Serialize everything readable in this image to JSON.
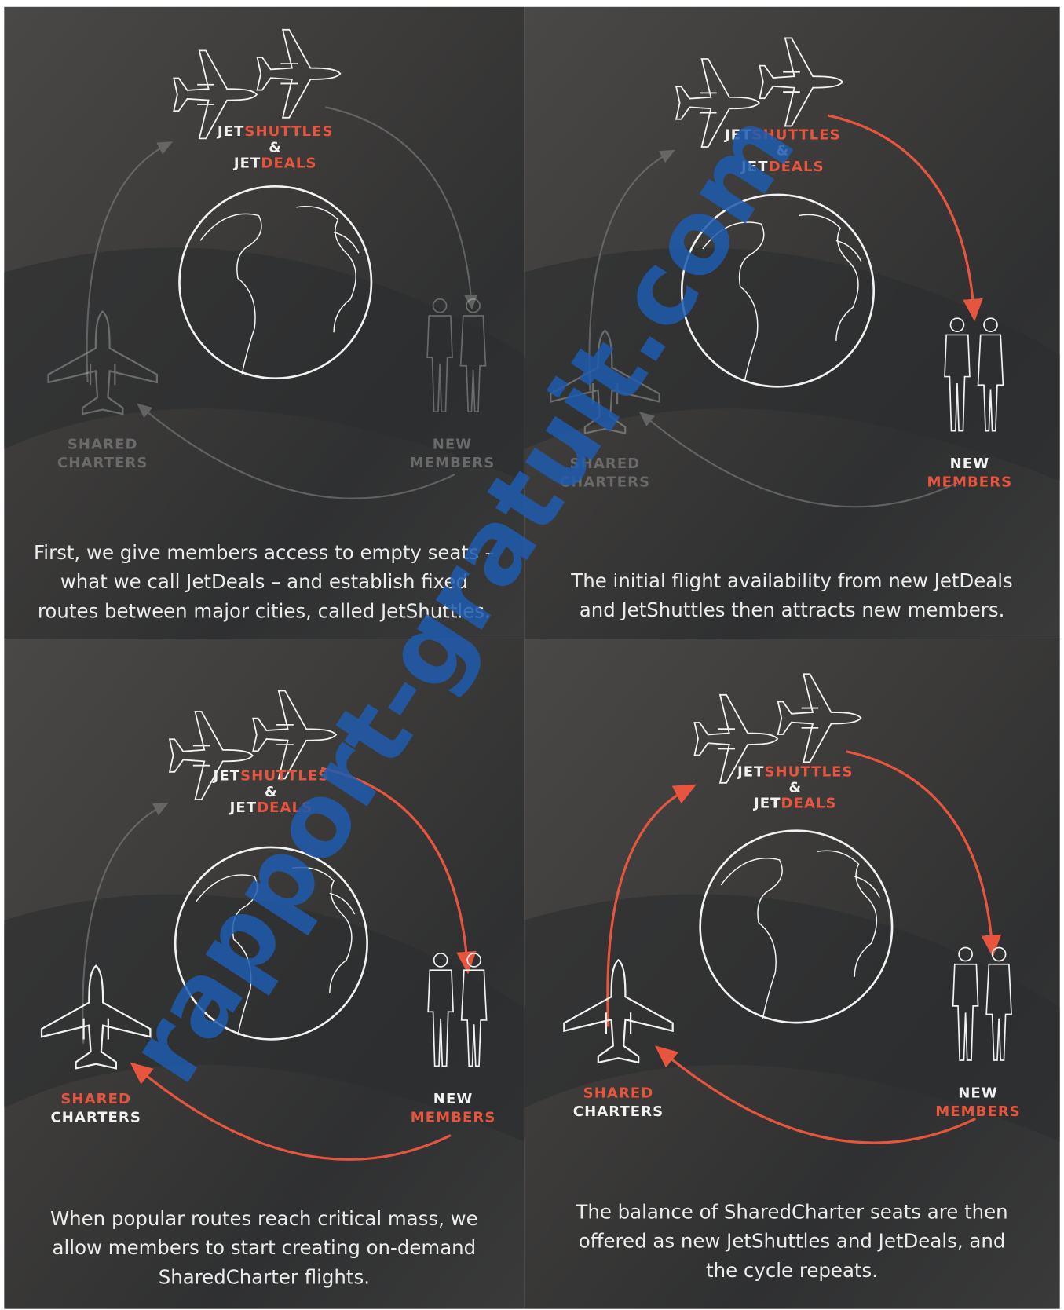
{
  "panels": [
    {
      "jet_shuttles": [
        "JET",
        "SHUTTLES"
      ],
      "ampersand": "&",
      "jet_deals": [
        "JET",
        "DEALS"
      ],
      "shared_charters": [
        "SHARED",
        "CHARTERS"
      ],
      "new_members": [
        "NEW",
        "MEMBERS"
      ],
      "caption": [
        "First, we give members access to empty seats –",
        "what we call JetDeals – and establish fixed",
        "routes between major cities, called JetShuttles."
      ]
    },
    {
      "jet_shuttles": [
        "JET",
        "SHUTTLES"
      ],
      "ampersand": "&",
      "jet_deals": [
        "JET",
        "DEALS"
      ],
      "shared_charters": [
        "SHARED",
        "CHARTERS"
      ],
      "new_members": [
        "NEW",
        "MEMBERS"
      ],
      "caption": [
        "The initial flight availability from new JetDeals",
        "and JetShuttles then attracts new members."
      ]
    },
    {
      "jet_shuttles": [
        "JET",
        "SHUTTLES"
      ],
      "ampersand": "&",
      "jet_deals": [
        "JET",
        "DEALS"
      ],
      "shared_charters": [
        "SHARED",
        "CHARTERS"
      ],
      "new_members": [
        "NEW",
        "MEMBERS"
      ],
      "caption": [
        "When popular routes reach critical mass, we",
        "allow members to start creating on-demand",
        "SharedCharter flights."
      ]
    },
    {
      "jet_shuttles": [
        "JET",
        "SHUTTLES"
      ],
      "ampersand": "&",
      "jet_deals": [
        "JET",
        "DEALS"
      ],
      "shared_charters": [
        "SHARED",
        "CHARTERS"
      ],
      "new_members": [
        "NEW",
        "MEMBERS"
      ],
      "caption": [
        "The balance of SharedCharter seats are then",
        "offered as new JetShuttles and JetDeals, and",
        "the cycle repeats."
      ]
    }
  ],
  "watermark": "rapport-gratuit.com"
}
